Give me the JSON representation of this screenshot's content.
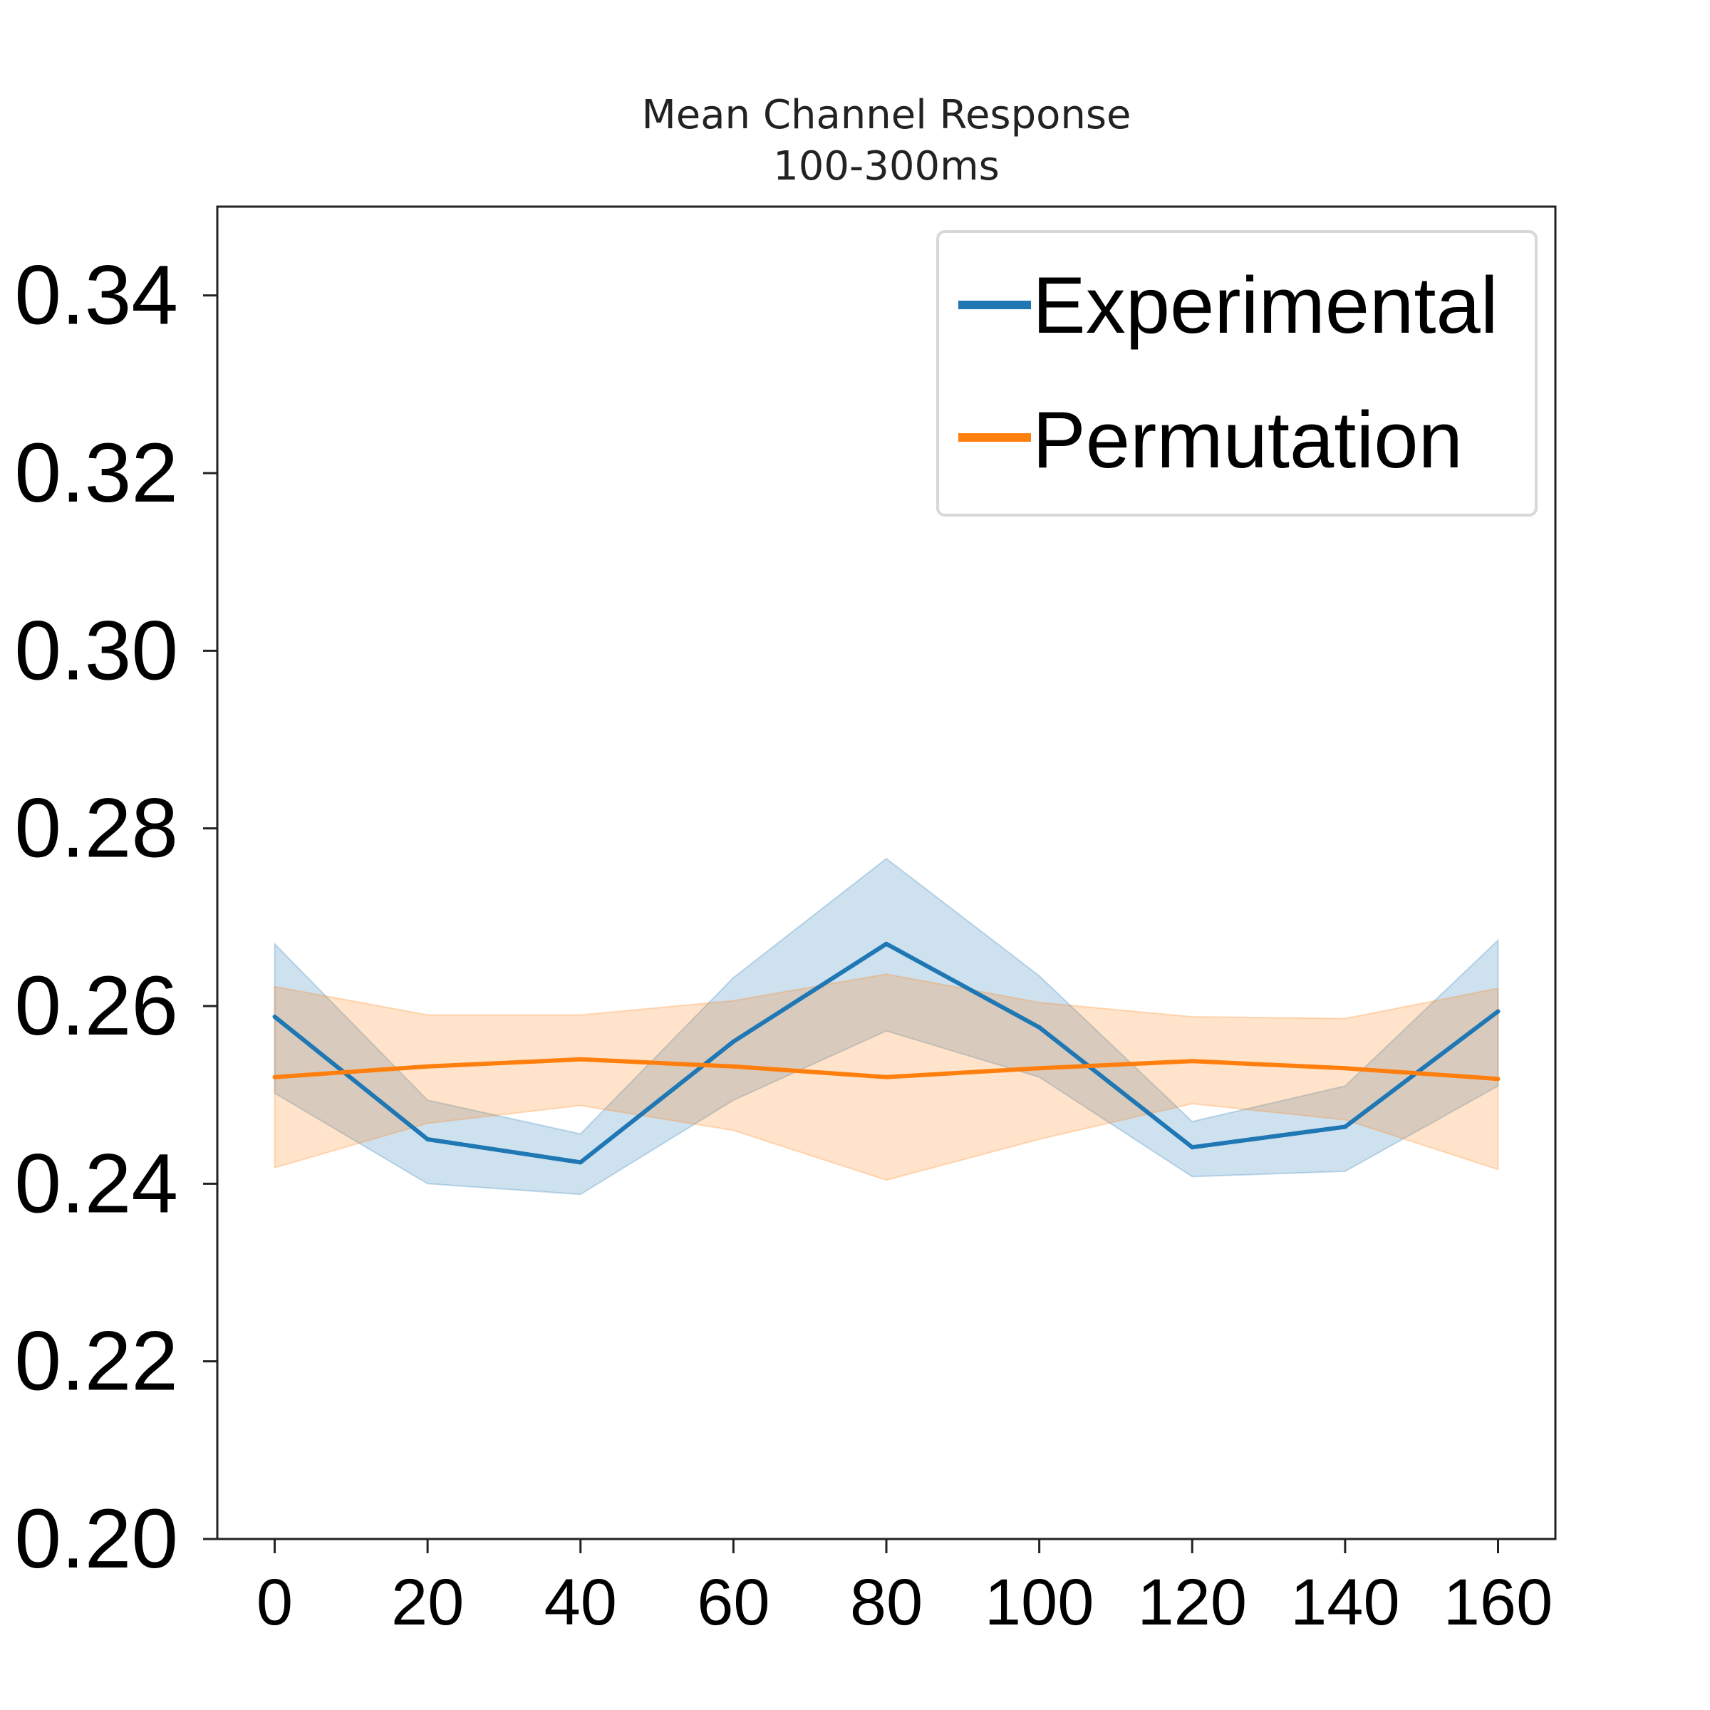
{
  "chart_data": {
    "type": "line",
    "title": "Mean Channel Response",
    "subtitle": "100-300ms",
    "xlabel": "",
    "ylabel": "",
    "x": [
      0,
      20,
      40,
      60,
      80,
      100,
      120,
      140,
      160
    ],
    "xlim": [
      -7.5,
      167.5
    ],
    "ylim": [
      0.2,
      0.35
    ],
    "yticks": [
      0.2,
      0.22,
      0.24,
      0.26,
      0.28,
      0.3,
      0.32,
      0.34
    ],
    "ytick_labels": [
      "0.20",
      "0.22",
      "0.24",
      "0.26",
      "0.28",
      "0.30",
      "0.32",
      "0.34"
    ],
    "xtick_labels": [
      "0",
      "20",
      "40",
      "60",
      "80",
      "100",
      "120",
      "140",
      "160"
    ],
    "grid": false,
    "legend": {
      "placement": "top-right",
      "entries": [
        "Experimental",
        "Permutation"
      ]
    },
    "series": [
      {
        "name": "Experimental",
        "color": "#1f77b4",
        "values": [
          0.2588,
          0.245,
          0.2424,
          0.256,
          0.267,
          0.2576,
          0.2441,
          0.2464,
          0.2594
        ],
        "lower": [
          0.2502,
          0.24,
          0.2388,
          0.2494,
          0.2572,
          0.252,
          0.2408,
          0.2414,
          0.251
        ],
        "upper": [
          0.267,
          0.2494,
          0.2456,
          0.2632,
          0.2766,
          0.2634,
          0.247,
          0.251,
          0.2674
        ]
      },
      {
        "name": "Permutation",
        "color": "#ff7f0e",
        "values": [
          0.252,
          0.2532,
          0.254,
          0.2532,
          0.252,
          0.253,
          0.2538,
          0.253,
          0.2518
        ],
        "lower": [
          0.2418,
          0.2468,
          0.2488,
          0.246,
          0.2404,
          0.245,
          0.249,
          0.2472,
          0.2416
        ],
        "upper": [
          0.2622,
          0.259,
          0.259,
          0.2606,
          0.2636,
          0.2604,
          0.2588,
          0.2586,
          0.262
        ]
      }
    ]
  }
}
